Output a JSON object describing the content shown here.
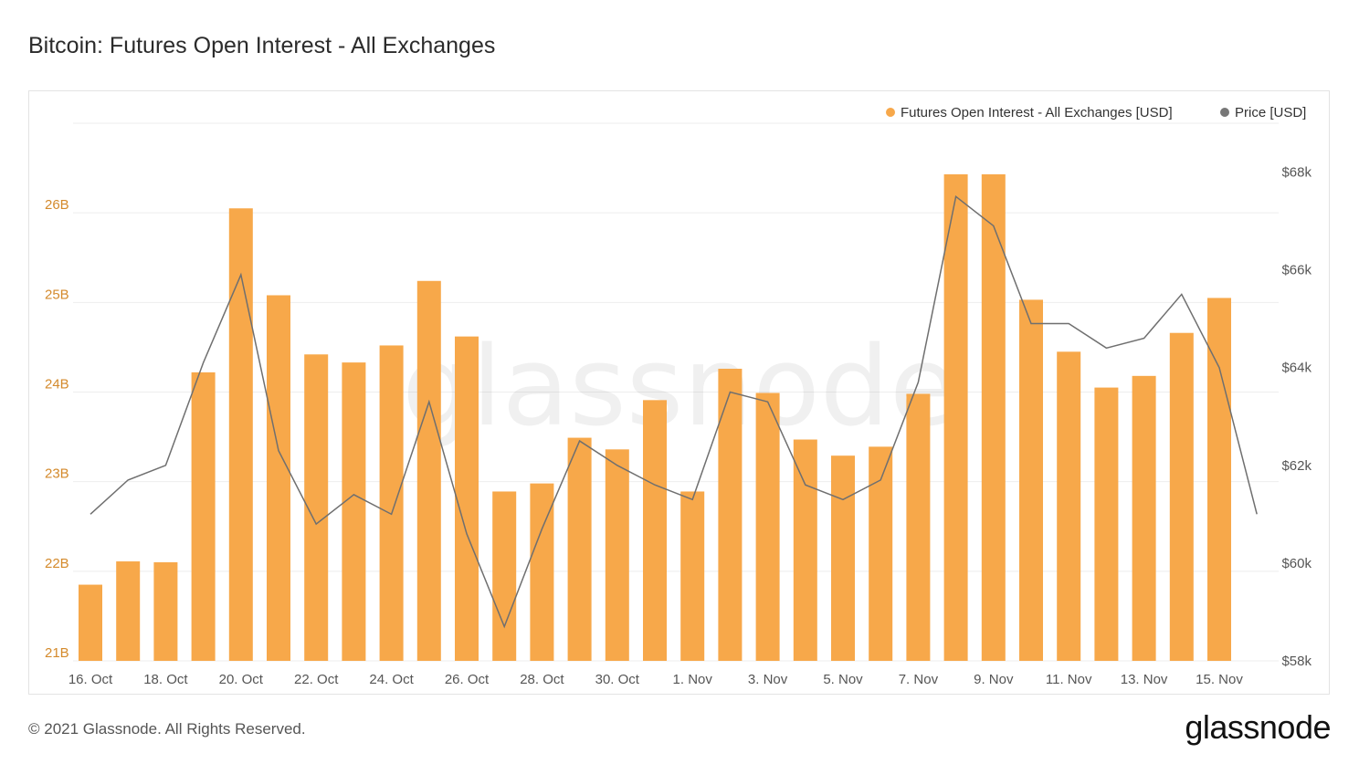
{
  "page": {
    "title": "Bitcoin: Futures Open Interest - All Exchanges",
    "footer": "© 2021 Glassnode. All Rights Reserved.",
    "brand": "glassnode",
    "watermark": "glassnode"
  },
  "colors": {
    "bar": "#f7a84a",
    "bar_label": "#d48a2c",
    "price_line": "#6f6f6f",
    "price_dot": "#777777",
    "grid": "#eeeeee",
    "axis_text": "#555555"
  },
  "chart_data": {
    "type": "bar",
    "title": "Bitcoin: Futures Open Interest - All Exchanges",
    "legend_position": "top-right",
    "grid": true,
    "x": [
      "16. Oct",
      "17. Oct",
      "18. Oct",
      "19. Oct",
      "20. Oct",
      "21. Oct",
      "22. Oct",
      "23. Oct",
      "24. Oct",
      "25. Oct",
      "26. Oct",
      "27. Oct",
      "28. Oct",
      "29. Oct",
      "30. Oct",
      "31. Oct",
      "1. Nov",
      "2. Nov",
      "3. Nov",
      "4. Nov",
      "5. Nov",
      "6. Nov",
      "7. Nov",
      "8. Nov",
      "9. Nov",
      "10. Nov",
      "11. Nov",
      "12. Nov",
      "13. Nov",
      "14. Nov",
      "15. Nov",
      "16. Nov"
    ],
    "x_tick_labels": [
      "16. Oct",
      "18. Oct",
      "20. Oct",
      "22. Oct",
      "24. Oct",
      "26. Oct",
      "28. Oct",
      "30. Oct",
      "1. Nov",
      "3. Nov",
      "5. Nov",
      "7. Nov",
      "9. Nov",
      "11. Nov",
      "13. Nov",
      "15. Nov"
    ],
    "left_axis": {
      "ylim": [
        21,
        27
      ],
      "ticks": [
        21,
        22,
        23,
        24,
        25,
        26
      ],
      "tick_labels": [
        "21B",
        "22B",
        "23B",
        "24B",
        "25B",
        "26B"
      ]
    },
    "right_axis": {
      "ylim": [
        58000,
        69000
      ],
      "ticks": [
        58000,
        60000,
        62000,
        64000,
        66000,
        68000
      ],
      "tick_labels": [
        "$58k",
        "$60k",
        "$62k",
        "$64k",
        "$66k",
        "$68k"
      ]
    },
    "series": [
      {
        "name": "Futures Open Interest - All Exchanges [USD]",
        "kind": "bar",
        "axis": "left",
        "values": [
          21.85,
          22.11,
          22.1,
          24.22,
          26.05,
          25.08,
          24.42,
          24.33,
          24.52,
          25.24,
          24.62,
          22.89,
          22.98,
          23.49,
          23.36,
          23.91,
          22.89,
          24.26,
          23.99,
          23.47,
          23.29,
          23.39,
          23.98,
          26.43,
          26.43,
          25.03,
          24.45,
          24.05,
          24.18,
          24.66,
          25.05,
          null
        ]
      },
      {
        "name": "Price [USD]",
        "kind": "line",
        "axis": "right",
        "values": [
          61000,
          61700,
          62000,
          64100,
          65900,
          62300,
          60800,
          61400,
          61000,
          63300,
          60600,
          58700,
          60700,
          62500,
          62000,
          61600,
          61300,
          63500,
          63300,
          61600,
          61300,
          61700,
          63700,
          67500,
          66900,
          64900,
          64900,
          64400,
          64600,
          65500,
          64000,
          61000
        ]
      }
    ]
  }
}
